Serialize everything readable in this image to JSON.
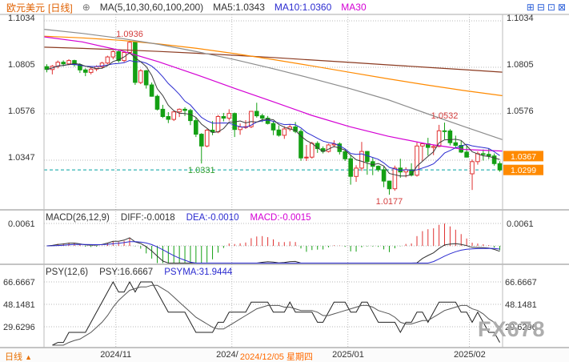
{
  "header": {
    "symbol": "欧元美元",
    "period_tag": "[日线]",
    "expand_icon": "⊕",
    "ma_settings": "MA(5,10,30,60,100,200)",
    "ma5_label": "MA5:1.0343",
    "ma10_label": "MA10:1.0360",
    "ma30_label": "MA30",
    "toolbar_icons": [
      "⊞",
      "⊟",
      "⊡",
      "⊠"
    ]
  },
  "colors": {
    "up": "#e03232",
    "down": "#14a014",
    "badge": "#ff8a00",
    "last_price_line": "#00a2a2",
    "diff": "#333333",
    "dea": "#2b2bd0",
    "psy": "#222222",
    "psyma": "#555555",
    "accent_orange": "#e87000"
  },
  "main_axis": {
    "left_labels": [
      "1.1034",
      "1.0805",
      "1.0576",
      "1.0347"
    ],
    "right_labels": [
      "1.1034",
      "1.0805",
      "1.0576"
    ]
  },
  "macd": {
    "title": "MACD(26,12,9)",
    "diff_label": "DIFF:-0.0018",
    "dea_label": "DEA:-0.0010",
    "macd_label": "MACD:-0.0015"
  },
  "psy": {
    "title": "PSY(12,6)",
    "psy_label": "PSY:16.6667",
    "psyma_label": "PSYMA:31.9444",
    "axis_labels": [
      "66.6667",
      "48.1481",
      "29.6296"
    ]
  },
  "bottom": {
    "period": "日线",
    "arrow": "▲",
    "highlight_date": "2024/12/05 星期四",
    "highlight_index": 37
  },
  "watermark": "FX678",
  "chart_data": {
    "type": "candlestick",
    "symbol": "欧元美元",
    "period": "日线",
    "price_gridlines": [
      1.1034,
      1.0805,
      1.0576,
      1.0347
    ],
    "last_price": 1.0299,
    "price_badges": [
      1.0367,
      1.0299
    ],
    "month_ticks": [
      {
        "label": "2024/11",
        "index": 13
      },
      {
        "label": "2024/12",
        "index": 34
      },
      {
        "label": "2025/01",
        "index": 55
      },
      {
        "label": "2025/02",
        "index": 77
      }
    ],
    "annotations": [
      {
        "text": "1.0936",
        "index": 15,
        "placement": "above",
        "color": "#d43c3c"
      },
      {
        "text": "1.0532",
        "index": 72,
        "placement": "above",
        "color": "#d43c3c"
      },
      {
        "text": "1.0177",
        "index": 62,
        "placement": "below",
        "color": "#d43c3c"
      },
      {
        "text": "1.0331",
        "index": 28,
        "placement": "below",
        "color": "#2e9e2e"
      }
    ],
    "moving_averages": {
      "ma5": {
        "period": 5,
        "color": "#3c3c3c",
        "computed": true
      },
      "ma10": {
        "period": 10,
        "color": "#2b2bd0",
        "computed": true
      },
      "ma30": {
        "period": 30,
        "color": "#d400d4",
        "points": [
          1.0955,
          1.093,
          1.0888,
          1.0832,
          1.0768,
          1.07,
          1.0635,
          1.0568,
          1.0512,
          1.0465,
          1.0428,
          1.04,
          1.0392
        ]
      },
      "ma60": {
        "period": 60,
        "color": "#8c8c8c",
        "points": [
          1.0992,
          1.0972,
          1.0948,
          1.0918,
          1.0882,
          1.0842,
          1.0798,
          1.075,
          1.07,
          1.0645,
          1.0578,
          1.0512,
          1.0448
        ]
      },
      "ma100": {
        "period": 100,
        "color": "#ff8a00",
        "points": [
          1.0958,
          1.095,
          1.0938,
          1.092,
          1.0898,
          1.0872,
          1.0843,
          1.0812,
          1.078,
          1.0748,
          1.0718,
          1.069,
          1.0665
        ]
      },
      "ma200": {
        "period": 200,
        "color": "#8b3a20",
        "points": [
          1.0904,
          1.0898,
          1.0891,
          1.0883,
          1.0874,
          1.0864,
          1.0853,
          1.0841,
          1.0829,
          1.0817,
          1.0805,
          1.0793,
          1.0781
        ]
      }
    },
    "macd_pane": {
      "axis_label": "0.0061",
      "axis_value": 0.0061,
      "diff": -0.0018,
      "dea": -0.001,
      "macd": -0.0015
    },
    "psy_pane": {
      "axis_values": [
        66.6667,
        48.1481,
        29.6296
      ],
      "psy": 16.6667,
      "psyma": 31.9444
    },
    "candles": [
      [
        1.0808,
        1.082,
        1.078,
        1.0794
      ],
      [
        1.0794,
        1.0816,
        1.077,
        1.081
      ],
      [
        1.081,
        1.0838,
        1.08,
        1.083
      ],
      [
        1.083,
        1.0839,
        1.081,
        1.0822
      ],
      [
        1.0822,
        1.0845,
        1.0815,
        1.0838
      ],
      [
        1.0838,
        1.0842,
        1.0808,
        1.0818
      ],
      [
        1.0818,
        1.0825,
        1.0777,
        1.0792
      ],
      [
        1.0792,
        1.08,
        1.0761,
        1.078
      ],
      [
        1.078,
        1.0803,
        1.077,
        1.0796
      ],
      [
        1.0796,
        1.0815,
        1.0786,
        1.0808
      ],
      [
        1.0808,
        1.0832,
        1.0798,
        1.0826
      ],
      [
        1.0826,
        1.0862,
        1.082,
        1.0856
      ],
      [
        1.0856,
        1.0888,
        1.0844,
        1.0882
      ],
      [
        1.0882,
        1.089,
        1.0828,
        1.0838
      ],
      [
        1.0838,
        1.0884,
        1.083,
        1.0878
      ],
      [
        1.0878,
        1.0936,
        1.087,
        1.0928
      ],
      [
        1.0928,
        1.093,
        1.0718,
        1.073
      ],
      [
        1.073,
        1.0796,
        1.0722,
        1.0788
      ],
      [
        1.0788,
        1.0792,
        1.07,
        1.0718
      ],
      [
        1.0718,
        1.073,
        1.066,
        1.0662
      ],
      [
        1.0662,
        1.067,
        1.0592,
        1.0598
      ],
      [
        1.0598,
        1.062,
        1.0555,
        1.0562
      ],
      [
        1.0562,
        1.0584,
        1.053,
        1.0548
      ],
      [
        1.0548,
        1.0592,
        1.054,
        1.0585
      ],
      [
        1.0585,
        1.0602,
        1.056,
        1.0598
      ],
      [
        1.0598,
        1.0608,
        1.0565,
        1.0592
      ],
      [
        1.0592,
        1.06,
        1.052,
        1.0542
      ],
      [
        1.0542,
        1.0555,
        1.0461,
        1.0475
      ],
      [
        1.0475,
        1.048,
        1.0331,
        1.0417
      ],
      [
        1.0417,
        1.05,
        1.041,
        1.0495
      ],
      [
        1.0495,
        1.054,
        1.047,
        1.0486
      ],
      [
        1.0486,
        1.057,
        1.048,
        1.0562
      ],
      [
        1.0562,
        1.058,
        1.0538,
        1.0554
      ],
      [
        1.0554,
        1.0598,
        1.0542,
        1.0577
      ],
      [
        1.0577,
        1.0582,
        1.0461,
        1.0498
      ],
      [
        1.0498,
        1.0528,
        1.0472,
        1.0511
      ],
      [
        1.0511,
        1.0544,
        1.0501,
        1.0512
      ],
      [
        1.0512,
        1.059,
        1.0505,
        1.0588
      ],
      [
        1.0588,
        1.063,
        1.0557,
        1.0566
      ],
      [
        1.0566,
        1.0576,
        1.0535,
        1.0554
      ],
      [
        1.0554,
        1.0565,
        1.0523,
        1.0528
      ],
      [
        1.0528,
        1.0538,
        1.047,
        1.0496
      ],
      [
        1.0496,
        1.0518,
        1.0463,
        1.047
      ],
      [
        1.047,
        1.0514,
        1.0452,
        1.0501
      ],
      [
        1.0501,
        1.0525,
        1.049,
        1.0511
      ],
      [
        1.0511,
        1.0535,
        1.048,
        1.0489
      ],
      [
        1.0489,
        1.05,
        1.0344,
        1.0358
      ],
      [
        1.0358,
        1.0422,
        1.0343,
        1.0362
      ],
      [
        1.0362,
        1.0438,
        1.0355,
        1.043
      ],
      [
        1.043,
        1.044,
        1.0383,
        1.0404
      ],
      [
        1.0404,
        1.0415,
        1.038,
        1.039
      ],
      [
        1.039,
        1.0428,
        1.0385,
        1.0422
      ],
      [
        1.0422,
        1.0445,
        1.041,
        1.0427
      ],
      [
        1.0427,
        1.0435,
        1.0375,
        1.0389
      ],
      [
        1.0389,
        1.04,
        1.0343,
        1.0354
      ],
      [
        1.0354,
        1.0374,
        1.0226,
        1.0267
      ],
      [
        1.0267,
        1.0322,
        1.024,
        1.0308
      ],
      [
        1.0308,
        1.0437,
        1.0294,
        1.039
      ],
      [
        1.039,
        1.0392,
        1.0275,
        1.034
      ],
      [
        1.034,
        1.0358,
        1.0273,
        1.0317
      ],
      [
        1.0317,
        1.0321,
        1.029,
        1.03
      ],
      [
        1.03,
        1.0315,
        1.0214,
        1.0244
      ],
      [
        1.0244,
        1.0246,
        1.0177,
        1.0206
      ],
      [
        1.0206,
        1.032,
        1.0196,
        1.0308
      ],
      [
        1.0308,
        1.0354,
        1.026,
        1.0289
      ],
      [
        1.0289,
        1.0312,
        1.0262,
        1.03
      ],
      [
        1.03,
        1.0332,
        1.0267,
        1.0273
      ],
      [
        1.0273,
        1.0435,
        1.0266,
        1.0417
      ],
      [
        1.0417,
        1.0434,
        1.0341,
        1.0428
      ],
      [
        1.0428,
        1.0457,
        1.037,
        1.041
      ],
      [
        1.041,
        1.0424,
        1.0372,
        1.0415
      ],
      [
        1.0415,
        1.0521,
        1.0411,
        1.0492
      ],
      [
        1.0492,
        1.0532,
        1.045,
        1.0491
      ],
      [
        1.0491,
        1.05,
        1.042,
        1.0433
      ],
      [
        1.0433,
        1.0468,
        1.0406,
        1.042
      ],
      [
        1.042,
        1.0442,
        1.0382,
        1.0387
      ],
      [
        1.0387,
        1.0418,
        1.036,
        1.0362
      ],
      [
        1.028,
        1.035,
        1.02,
        1.034
      ],
      [
        1.034,
        1.039,
        1.0325,
        1.0379
      ],
      [
        1.0379,
        1.04,
        1.0345,
        1.0376
      ],
      [
        1.0376,
        1.0405,
        1.0352,
        1.0368
      ],
      [
        1.0368,
        1.038,
        1.032,
        1.033
      ],
      [
        1.033,
        1.0342,
        1.029,
        1.0299
      ]
    ]
  }
}
